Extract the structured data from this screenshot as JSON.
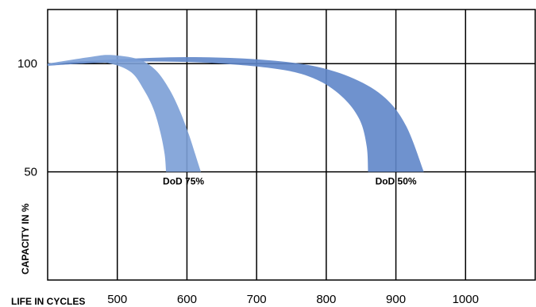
{
  "chart_data": {
    "type": "area",
    "title": "",
    "xlabel": "LIFE IN CYCLES",
    "ylabel": "CAPACITY IN %",
    "xlim": [
      400,
      1100
    ],
    "ylim": [
      0,
      125
    ],
    "x_ticks": [
      500,
      600,
      700,
      800,
      900,
      1000
    ],
    "y_ticks": [
      50,
      100
    ],
    "grid": true,
    "legend": "none",
    "series": [
      {
        "label": "DoD 75%",
        "color": "#7b9fd6",
        "upper": [
          {
            "x": 400,
            "y": 100
          },
          {
            "x": 460,
            "y": 103
          },
          {
            "x": 490,
            "y": 104
          },
          {
            "x": 530,
            "y": 102
          },
          {
            "x": 555,
            "y": 97
          },
          {
            "x": 575,
            "y": 88
          },
          {
            "x": 590,
            "y": 78
          },
          {
            "x": 603,
            "y": 67
          },
          {
            "x": 612,
            "y": 58
          },
          {
            "x": 620,
            "y": 50
          }
        ],
        "lower": [
          {
            "x": 570,
            "y": 50
          },
          {
            "x": 568,
            "y": 58
          },
          {
            "x": 562,
            "y": 68
          },
          {
            "x": 552,
            "y": 79
          },
          {
            "x": 538,
            "y": 88
          },
          {
            "x": 520,
            "y": 96
          },
          {
            "x": 490,
            "y": 100
          },
          {
            "x": 450,
            "y": 101
          },
          {
            "x": 400,
            "y": 99
          }
        ]
      },
      {
        "label": "DoD 50%",
        "color": "#5f86c9",
        "upper": [
          {
            "x": 400,
            "y": 100
          },
          {
            "x": 500,
            "y": 102
          },
          {
            "x": 600,
            "y": 103
          },
          {
            "x": 700,
            "y": 102
          },
          {
            "x": 780,
            "y": 99
          },
          {
            "x": 840,
            "y": 93
          },
          {
            "x": 885,
            "y": 84
          },
          {
            "x": 915,
            "y": 71
          },
          {
            "x": 940,
            "y": 50
          }
        ],
        "lower": [
          {
            "x": 860,
            "y": 50
          },
          {
            "x": 858,
            "y": 62
          },
          {
            "x": 848,
            "y": 74
          },
          {
            "x": 825,
            "y": 84
          },
          {
            "x": 790,
            "y": 92
          },
          {
            "x": 740,
            "y": 97
          },
          {
            "x": 650,
            "y": 100
          },
          {
            "x": 550,
            "y": 101
          },
          {
            "x": 450,
            "y": 100
          },
          {
            "x": 400,
            "y": 99
          }
        ]
      }
    ]
  }
}
